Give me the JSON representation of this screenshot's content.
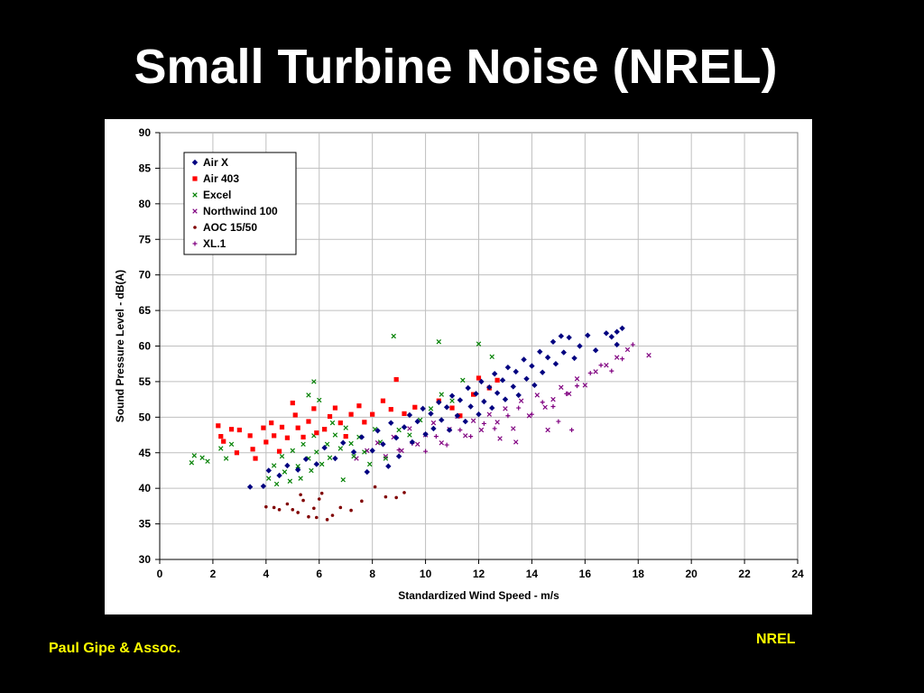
{
  "slide": {
    "title": "Small Turbine Noise (NREL)",
    "footer_left": "Paul Gipe & Assoc.",
    "footer_right": "NREL"
  },
  "chart_data": {
    "type": "scatter",
    "title": "",
    "xlabel": "Standardized Wind Speed - m/s",
    "ylabel": "Sound Pressure Level - dB(A)",
    "xlim": [
      0,
      24
    ],
    "ylim": [
      30,
      90
    ],
    "xticks": [
      0,
      2,
      4,
      6,
      8,
      10,
      12,
      14,
      16,
      18,
      20,
      22,
      24
    ],
    "yticks": [
      30,
      35,
      40,
      45,
      50,
      55,
      60,
      65,
      70,
      75,
      80,
      85,
      90
    ],
    "grid": true,
    "legend_position": "top-left",
    "series": [
      {
        "name": "Air X",
        "marker": "diamond",
        "color": "#000080",
        "points": [
          [
            3.4,
            40.2
          ],
          [
            3.9,
            40.3
          ],
          [
            4.1,
            42.5
          ],
          [
            4.5,
            41.8
          ],
          [
            4.8,
            43.2
          ],
          [
            5.2,
            42.6
          ],
          [
            5.5,
            44.1
          ],
          [
            5.9,
            43.4
          ],
          [
            6.2,
            45.7
          ],
          [
            6.6,
            44.2
          ],
          [
            6.9,
            46.4
          ],
          [
            7.3,
            45.1
          ],
          [
            7.6,
            47.2
          ],
          [
            7.8,
            42.3
          ],
          [
            8.0,
            45.3
          ],
          [
            8.2,
            48.1
          ],
          [
            8.4,
            46.2
          ],
          [
            8.6,
            43.1
          ],
          [
            8.7,
            49.2
          ],
          [
            8.9,
            47.1
          ],
          [
            9.0,
            44.5
          ],
          [
            9.2,
            48.6
          ],
          [
            9.4,
            50.3
          ],
          [
            9.5,
            46.5
          ],
          [
            9.7,
            49.4
          ],
          [
            9.9,
            51.2
          ],
          [
            10.0,
            47.6
          ],
          [
            10.2,
            50.5
          ],
          [
            10.3,
            48.4
          ],
          [
            10.5,
            52.1
          ],
          [
            10.6,
            49.6
          ],
          [
            10.8,
            51.4
          ],
          [
            10.9,
            48.2
          ],
          [
            11.0,
            53.0
          ],
          [
            11.2,
            50.2
          ],
          [
            11.3,
            52.4
          ],
          [
            11.5,
            49.4
          ],
          [
            11.6,
            54.1
          ],
          [
            11.7,
            51.5
          ],
          [
            11.9,
            53.3
          ],
          [
            12.0,
            50.4
          ],
          [
            12.1,
            55.0
          ],
          [
            12.2,
            52.2
          ],
          [
            12.4,
            54.2
          ],
          [
            12.5,
            51.3
          ],
          [
            12.6,
            56.1
          ],
          [
            12.7,
            53.4
          ],
          [
            12.9,
            55.2
          ],
          [
            13.0,
            52.5
          ],
          [
            13.1,
            57.0
          ],
          [
            13.3,
            54.3
          ],
          [
            13.4,
            56.4
          ],
          [
            13.5,
            53.1
          ],
          [
            13.7,
            58.1
          ],
          [
            13.8,
            55.4
          ],
          [
            14.0,
            57.2
          ],
          [
            14.1,
            54.5
          ],
          [
            14.3,
            59.2
          ],
          [
            14.4,
            56.3
          ],
          [
            14.6,
            58.4
          ],
          [
            14.8,
            60.6
          ],
          [
            14.9,
            57.5
          ],
          [
            15.1,
            61.4
          ],
          [
            15.2,
            59.1
          ],
          [
            15.4,
            61.2
          ],
          [
            15.6,
            58.3
          ],
          [
            15.8,
            60.0
          ],
          [
            16.1,
            61.5
          ],
          [
            16.4,
            59.4
          ],
          [
            16.8,
            61.8
          ],
          [
            17.0,
            61.3
          ],
          [
            17.2,
            62.0
          ],
          [
            17.4,
            62.5
          ],
          [
            17.2,
            60.2
          ]
        ]
      },
      {
        "name": "Air 403",
        "marker": "square",
        "color": "#ff0000",
        "points": [
          [
            2.2,
            48.8
          ],
          [
            2.3,
            47.3
          ],
          [
            2.4,
            46.6
          ],
          [
            2.7,
            48.3
          ],
          [
            2.9,
            45.0
          ],
          [
            3.0,
            48.2
          ],
          [
            3.4,
            47.4
          ],
          [
            3.5,
            45.5
          ],
          [
            3.6,
            44.2
          ],
          [
            3.9,
            48.5
          ],
          [
            4.0,
            46.5
          ],
          [
            4.2,
            49.2
          ],
          [
            4.3,
            47.4
          ],
          [
            4.5,
            45.2
          ],
          [
            4.6,
            48.6
          ],
          [
            4.8,
            47.1
          ],
          [
            5.0,
            52.0
          ],
          [
            5.1,
            50.3
          ],
          [
            5.2,
            48.5
          ],
          [
            5.4,
            47.2
          ],
          [
            5.6,
            49.4
          ],
          [
            5.8,
            51.2
          ],
          [
            5.9,
            47.8
          ],
          [
            6.2,
            48.3
          ],
          [
            6.4,
            50.1
          ],
          [
            6.6,
            51.3
          ],
          [
            6.8,
            49.2
          ],
          [
            7.0,
            47.3
          ],
          [
            7.2,
            50.4
          ],
          [
            7.5,
            51.6
          ],
          [
            7.7,
            49.3
          ],
          [
            8.0,
            50.4
          ],
          [
            8.4,
            52.3
          ],
          [
            8.7,
            51.1
          ],
          [
            8.9,
            55.3
          ],
          [
            9.2,
            50.5
          ],
          [
            9.6,
            51.4
          ],
          [
            10.5,
            52.3
          ],
          [
            11.0,
            51.3
          ],
          [
            11.3,
            50.2
          ],
          [
            11.8,
            53.2
          ],
          [
            12.0,
            55.5
          ],
          [
            12.4,
            54.1
          ],
          [
            12.7,
            55.2
          ]
        ]
      },
      {
        "name": "Excel",
        "marker": "cross",
        "color": "#008000",
        "points": [
          [
            1.2,
            43.6
          ],
          [
            1.3,
            44.6
          ],
          [
            1.6,
            44.3
          ],
          [
            1.8,
            43.8
          ],
          [
            2.3,
            45.6
          ],
          [
            2.5,
            44.2
          ],
          [
            2.7,
            46.2
          ],
          [
            4.1,
            41.4
          ],
          [
            4.3,
            43.2
          ],
          [
            4.4,
            40.6
          ],
          [
            4.6,
            44.5
          ],
          [
            4.7,
            42.3
          ],
          [
            4.9,
            41.0
          ],
          [
            5.0,
            45.3
          ],
          [
            5.2,
            43.1
          ],
          [
            5.3,
            41.4
          ],
          [
            5.4,
            46.2
          ],
          [
            5.6,
            44.2
          ],
          [
            5.7,
            42.5
          ],
          [
            5.8,
            47.4
          ],
          [
            5.9,
            45.1
          ],
          [
            6.0,
            52.4
          ],
          [
            6.1,
            43.4
          ],
          [
            6.2,
            48.3
          ],
          [
            6.3,
            46.2
          ],
          [
            6.4,
            44.3
          ],
          [
            6.5,
            49.2
          ],
          [
            6.6,
            47.5
          ],
          [
            6.8,
            45.6
          ],
          [
            6.9,
            41.2
          ],
          [
            7.0,
            48.5
          ],
          [
            7.2,
            46.3
          ],
          [
            7.3,
            44.5
          ],
          [
            7.5,
            47.2
          ],
          [
            7.7,
            45.1
          ],
          [
            7.9,
            43.4
          ],
          [
            8.1,
            48.3
          ],
          [
            8.3,
            46.5
          ],
          [
            8.5,
            44.2
          ],
          [
            8.8,
            61.4
          ],
          [
            9.0,
            48.2
          ],
          [
            9.4,
            47.5
          ],
          [
            9.8,
            49.6
          ],
          [
            10.2,
            51.2
          ],
          [
            10.5,
            60.6
          ],
          [
            10.6,
            53.2
          ],
          [
            11.0,
            52.3
          ],
          [
            11.4,
            55.2
          ],
          [
            12.0,
            60.3
          ],
          [
            12.5,
            58.5
          ],
          [
            5.8,
            55.0
          ],
          [
            5.6,
            53.1
          ]
        ]
      },
      {
        "name": "Northwind 100",
        "marker": "x",
        "color": "#800080",
        "points": [
          [
            7.4,
            44.2
          ],
          [
            7.8,
            45.3
          ],
          [
            8.2,
            46.4
          ],
          [
            8.5,
            44.5
          ],
          [
            8.8,
            47.2
          ],
          [
            9.1,
            45.3
          ],
          [
            9.4,
            48.4
          ],
          [
            9.7,
            46.2
          ],
          [
            10.0,
            47.5
          ],
          [
            10.3,
            49.2
          ],
          [
            10.6,
            46.4
          ],
          [
            10.9,
            48.3
          ],
          [
            11.2,
            50.1
          ],
          [
            11.5,
            47.4
          ],
          [
            11.8,
            49.5
          ],
          [
            12.1,
            48.2
          ],
          [
            12.4,
            50.4
          ],
          [
            12.7,
            49.3
          ],
          [
            13.0,
            51.2
          ],
          [
            13.3,
            48.4
          ],
          [
            13.6,
            52.3
          ],
          [
            13.9,
            50.2
          ],
          [
            14.2,
            53.1
          ],
          [
            14.5,
            51.4
          ],
          [
            14.8,
            52.5
          ],
          [
            15.1,
            54.2
          ],
          [
            15.4,
            53.3
          ],
          [
            15.7,
            55.4
          ],
          [
            16.0,
            54.5
          ],
          [
            16.4,
            56.4
          ],
          [
            16.8,
            57.3
          ],
          [
            17.2,
            58.4
          ],
          [
            17.6,
            59.5
          ],
          [
            18.4,
            58.7
          ],
          [
            12.8,
            47.0
          ],
          [
            13.4,
            46.5
          ],
          [
            14.6,
            48.2
          ]
        ]
      },
      {
        "name": "AOC 15/50",
        "marker": "dot",
        "color": "#800000",
        "points": [
          [
            4.0,
            37.4
          ],
          [
            4.3,
            37.3
          ],
          [
            4.5,
            37.0
          ],
          [
            4.8,
            37.8
          ],
          [
            5.0,
            37.0
          ],
          [
            5.2,
            36.6
          ],
          [
            5.4,
            38.3
          ],
          [
            5.6,
            36.0
          ],
          [
            5.8,
            37.2
          ],
          [
            6.0,
            38.5
          ],
          [
            6.1,
            39.3
          ],
          [
            6.3,
            35.6
          ],
          [
            6.5,
            36.2
          ],
          [
            6.8,
            37.3
          ],
          [
            7.2,
            36.9
          ],
          [
            7.6,
            38.2
          ],
          [
            8.1,
            40.2
          ],
          [
            8.5,
            38.8
          ],
          [
            8.9,
            38.7
          ],
          [
            9.2,
            39.4
          ],
          [
            5.3,
            39.1
          ],
          [
            5.9,
            35.9
          ]
        ]
      },
      {
        "name": "XL.1",
        "marker": "plus",
        "color": "#800080",
        "points": [
          [
            9.0,
            45.4
          ],
          [
            9.5,
            46.3
          ],
          [
            10.0,
            45.2
          ],
          [
            10.4,
            47.3
          ],
          [
            10.8,
            46.1
          ],
          [
            11.3,
            48.2
          ],
          [
            11.7,
            47.3
          ],
          [
            12.2,
            49.1
          ],
          [
            12.6,
            48.4
          ],
          [
            13.1,
            50.2
          ],
          [
            13.5,
            51.3
          ],
          [
            14.0,
            50.4
          ],
          [
            14.4,
            52.1
          ],
          [
            14.8,
            51.5
          ],
          [
            15.3,
            53.3
          ],
          [
            15.7,
            54.4
          ],
          [
            16.2,
            56.2
          ],
          [
            16.6,
            57.3
          ],
          [
            17.0,
            56.5
          ],
          [
            17.4,
            58.2
          ],
          [
            17.8,
            60.2
          ],
          [
            15.0,
            49.4
          ],
          [
            15.5,
            48.2
          ]
        ]
      }
    ]
  }
}
